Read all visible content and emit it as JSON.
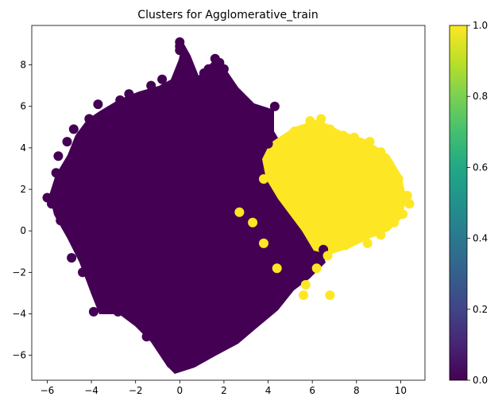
{
  "chart_data": {
    "type": "scatter",
    "title": "Clusters for Agglomerative_train",
    "xlabel": "",
    "ylabel": "",
    "xlim": [
      -6.7,
      11.1
    ],
    "ylim": [
      -7.2,
      9.9
    ],
    "x_ticks": [
      -6,
      -4,
      -2,
      0,
      2,
      4,
      6,
      8,
      10
    ],
    "y_ticks": [
      -6,
      -4,
      -2,
      0,
      2,
      4,
      6,
      8
    ],
    "grid": false,
    "legend": "none",
    "colormap": "viridis",
    "colorbar": {
      "range": [
        0.0,
        1.0
      ],
      "ticks": [
        "0.0",
        "0.2",
        "0.4",
        "0.6",
        "0.8",
        "1.0"
      ]
    },
    "series": [
      {
        "cluster": 0,
        "color": "#440154",
        "points": [
          [
            0,
            9.1
          ],
          [
            0,
            8.9
          ],
          [
            0,
            8.7
          ],
          [
            1.6,
            8.3
          ],
          [
            1.8,
            8.1
          ],
          [
            2,
            7.8
          ],
          [
            1.3,
            7.8
          ],
          [
            1.1,
            7.6
          ],
          [
            -0.8,
            7.3
          ],
          [
            0.5,
            7.5
          ],
          [
            0.2,
            7.3
          ],
          [
            2.2,
            7.1
          ],
          [
            -1.3,
            7
          ],
          [
            -0.4,
            6.9
          ],
          [
            0.8,
            6.7
          ],
          [
            -2.3,
            6.6
          ],
          [
            -1.7,
            6.4
          ],
          [
            -2.7,
            6.3
          ],
          [
            -3.7,
            6.1
          ],
          [
            2.5,
            6
          ],
          [
            3.3,
            5.9
          ],
          [
            4.3,
            6
          ],
          [
            -4.1,
            5.4
          ],
          [
            -4.8,
            4.9
          ],
          [
            -5.1,
            4.3
          ],
          [
            -5.5,
            3.6
          ],
          [
            -5.6,
            2.8
          ],
          [
            -5.2,
            2.3
          ],
          [
            -6,
            1.6
          ],
          [
            -5.8,
            1.3
          ],
          [
            -5.4,
            0.5
          ],
          [
            -5,
            0.3
          ],
          [
            -4.9,
            -1.3
          ],
          [
            -4.4,
            -2
          ],
          [
            -3.9,
            -2.6
          ],
          [
            -3.6,
            -3.3
          ],
          [
            -3.9,
            -3.9
          ],
          [
            -2.8,
            -3.9
          ],
          [
            -1.3,
            -4.2
          ],
          [
            -0.6,
            -4.7
          ],
          [
            -1.5,
            -5.1
          ],
          [
            -0.3,
            -5.5
          ],
          [
            0.5,
            -5.8
          ],
          [
            0,
            -6.2
          ],
          [
            -0.4,
            -6.4
          ],
          [
            1.2,
            -5.6
          ],
          [
            1.9,
            -5
          ],
          [
            2.9,
            -4.1
          ],
          [
            3.8,
            -3.3
          ],
          [
            4.8,
            -2.4
          ],
          [
            5.8,
            -1.5
          ],
          [
            6.5,
            -0.9
          ],
          [
            5.3,
            -0.3
          ],
          [
            4.3,
            -1.4
          ],
          [
            3.6,
            3.8
          ],
          [
            4,
            4.2
          ],
          [
            2.8,
            4.6
          ],
          [
            3.6,
            5.4
          ],
          [
            1.8,
            5
          ],
          [
            0.4,
            5.4
          ],
          [
            -1,
            5.5
          ]
        ]
      },
      {
        "cluster": 1,
        "color": "#fde725",
        "points": [
          [
            5.2,
            4.8
          ],
          [
            5.9,
            5.3
          ],
          [
            6.4,
            5.4
          ],
          [
            6.8,
            4.9
          ],
          [
            7.4,
            4.6
          ],
          [
            7.9,
            4.5
          ],
          [
            8.6,
            4.3
          ],
          [
            9.1,
            3.8
          ],
          [
            9.5,
            3.2
          ],
          [
            9.9,
            2.5
          ],
          [
            10.3,
            1.7
          ],
          [
            10.4,
            1.3
          ],
          [
            10.1,
            0.8
          ],
          [
            9.7,
            0.4
          ],
          [
            9.1,
            -0.2
          ],
          [
            8.5,
            -0.6
          ],
          [
            7.5,
            -0.7
          ],
          [
            6.7,
            -1.2
          ],
          [
            6.2,
            -1.8
          ],
          [
            5.7,
            -2.6
          ],
          [
            5.6,
            -3.1
          ],
          [
            6.8,
            -3.1
          ],
          [
            4.4,
            -1.8
          ],
          [
            3.8,
            -0.6
          ],
          [
            3.3,
            0.4
          ],
          [
            2.7,
            0.9
          ],
          [
            3.8,
            2.5
          ],
          [
            4.4,
            3.2
          ],
          [
            4.9,
            4.2
          ],
          [
            6.3,
            3.9
          ],
          [
            7.8,
            3.7
          ]
        ]
      }
    ]
  }
}
